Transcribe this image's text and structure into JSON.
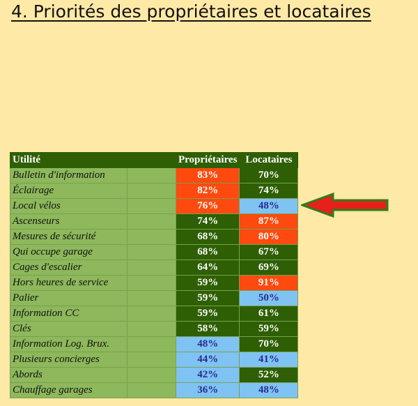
{
  "title": "4. Priorités des propriétaires et locataires",
  "table": {
    "headers": {
      "utility": "Utilité",
      "owners": "Propriétaires",
      "tenants": "Locataires"
    },
    "rows": [
      {
        "label": "Bulletin d'information",
        "owners": "83%",
        "owners_color": "red",
        "tenants": "70%",
        "tenants_color": "green"
      },
      {
        "label": "Éclairage",
        "owners": "82%",
        "owners_color": "red",
        "tenants": "74%",
        "tenants_color": "green"
      },
      {
        "label": "Local vélos",
        "owners": "76%",
        "owners_color": "red",
        "tenants": "48%",
        "tenants_color": "blue"
      },
      {
        "label": "Ascenseurs",
        "owners": "74%",
        "owners_color": "green",
        "tenants": "87%",
        "tenants_color": "red"
      },
      {
        "label": "Mesures de sécurité",
        "owners": "68%",
        "owners_color": "green",
        "tenants": "80%",
        "tenants_color": "red"
      },
      {
        "label": "Qui occupe garage",
        "owners": "68%",
        "owners_color": "green",
        "tenants": "67%",
        "tenants_color": "green"
      },
      {
        "label": "Cages d'escalier",
        "owners": "64%",
        "owners_color": "green",
        "tenants": "69%",
        "tenants_color": "green"
      },
      {
        "label": "Hors heures de service",
        "owners": "59%",
        "owners_color": "green",
        "tenants": "91%",
        "tenants_color": "red"
      },
      {
        "label": "Palier",
        "owners": "59%",
        "owners_color": "green",
        "tenants": "50%",
        "tenants_color": "blue"
      },
      {
        "label": "Information CC",
        "owners": "59%",
        "owners_color": "green",
        "tenants": "61%",
        "tenants_color": "green"
      },
      {
        "label": "Clés",
        "owners": "58%",
        "owners_color": "green",
        "tenants": "59%",
        "tenants_color": "green"
      },
      {
        "label": "Information Log. Brux.",
        "owners": "48%",
        "owners_color": "blue",
        "tenants": "70%",
        "tenants_color": "green"
      },
      {
        "label": "Plusieurs concierges",
        "owners": "44%",
        "owners_color": "blue",
        "tenants": "41%",
        "tenants_color": "blue"
      },
      {
        "label": "Abords",
        "owners": "42%",
        "owners_color": "blue",
        "tenants": "52%",
        "tenants_color": "green"
      },
      {
        "label": "Chauffage garages",
        "owners": "36%",
        "owners_color": "blue",
        "tenants": "48%",
        "tenants_color": "blue"
      }
    ]
  },
  "colors": {
    "background": "#FFE9A6",
    "red": "#FF4A0F",
    "green": "#2E5F04",
    "blue": "#7FC3F3",
    "label_bg": "#8DB85B",
    "arrow": "#E8201A"
  },
  "icons": {
    "pointer": "left-arrow-icon"
  }
}
